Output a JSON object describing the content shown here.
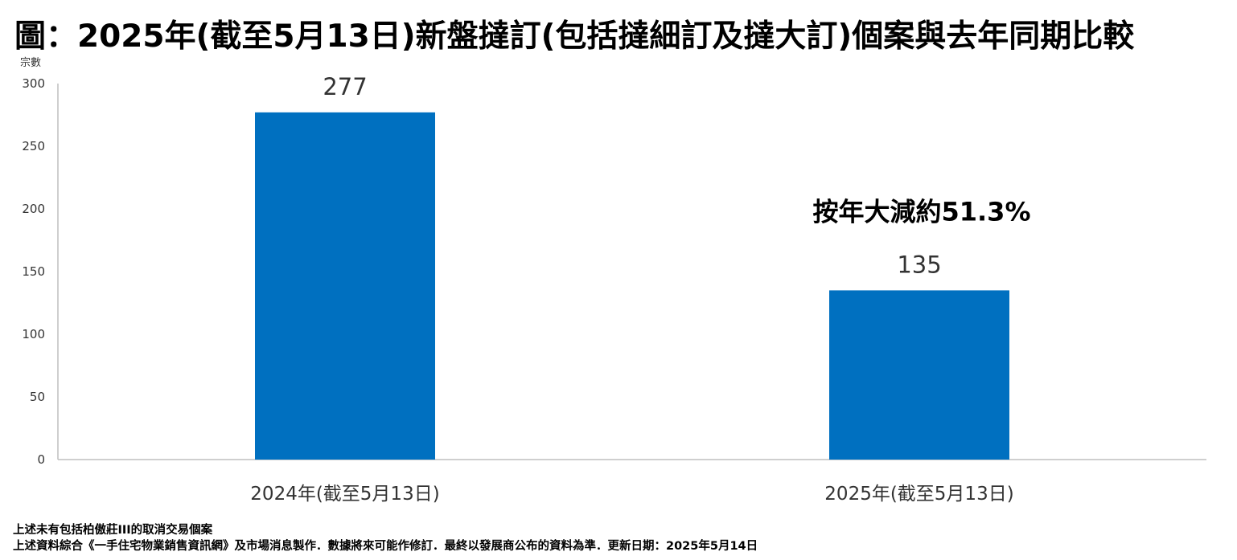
{
  "chart_data": {
    "type": "bar",
    "title": "圖：2025年(截至5月13日)新盤撻訂(包括撻細訂及撻大訂)個案與去年同期比較",
    "ylabel": "宗數",
    "xlabel": "",
    "ylim": [
      0,
      300
    ],
    "yticks": [
      0,
      50,
      100,
      150,
      200,
      250,
      300
    ],
    "categories": [
      "2024年(截至5月13日)",
      "2025年(截至5月13日)"
    ],
    "values": [
      277,
      135
    ],
    "bar_color": "#0070C0",
    "grid": false,
    "annotation": "按年大減約51.3%"
  },
  "footnotes": [
    "上述未有包括柏傲莊III的取消交易個案",
    "上述資料綜合《一手住宅物業銷售資訊網》及市場消息製作．數據將來可能作修訂．最終以發展商公布的資料為準．更新日期：2025年5月14日"
  ]
}
